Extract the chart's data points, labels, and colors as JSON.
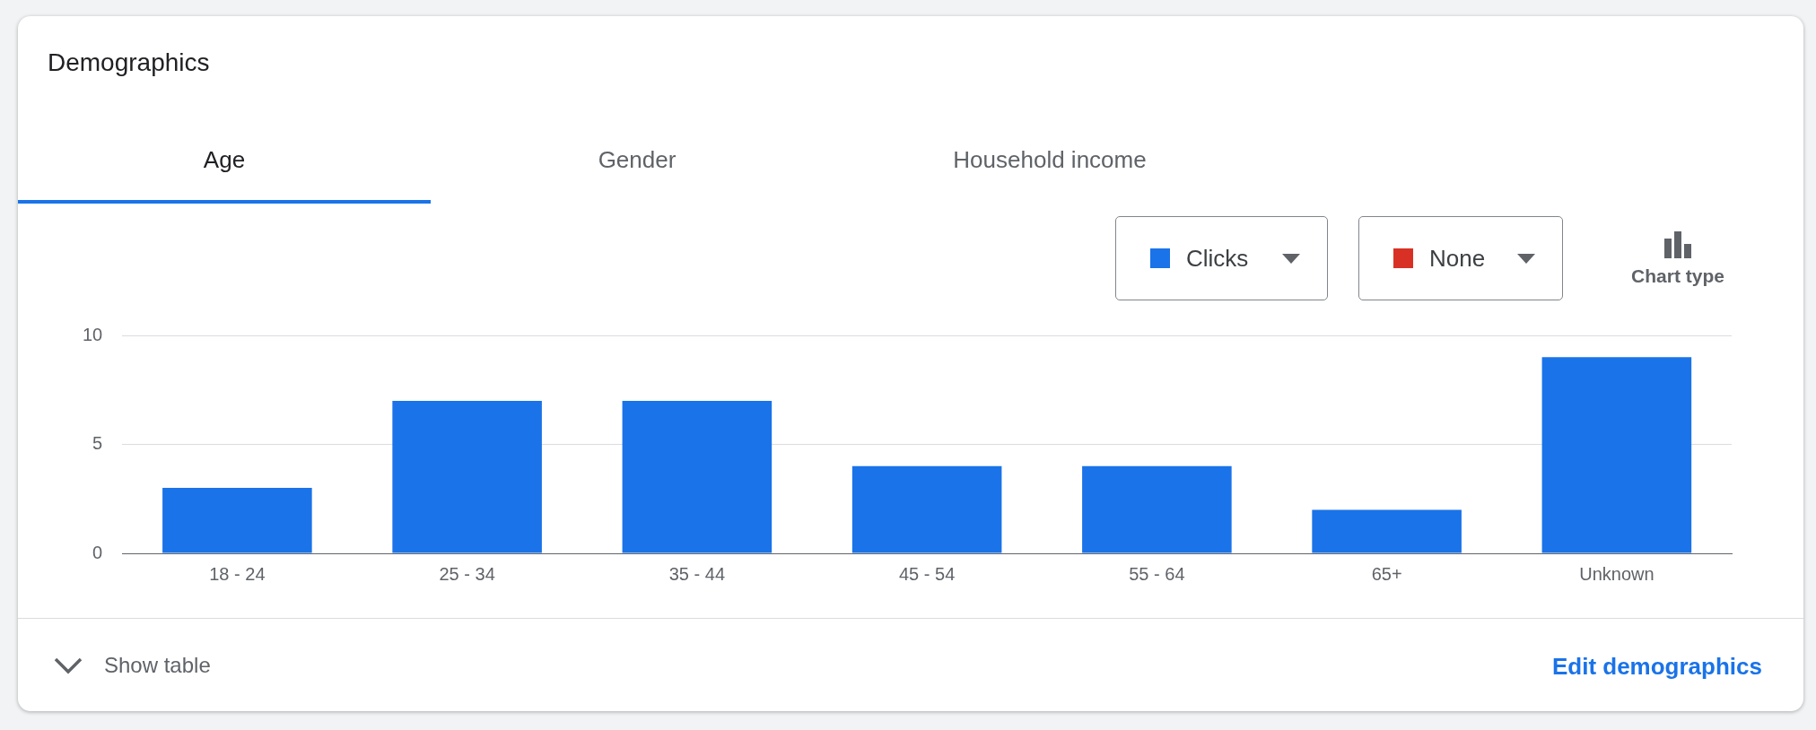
{
  "chart_data": {
    "type": "bar",
    "title": "Demographics",
    "categories": [
      "18 - 24",
      "25 - 34",
      "35 - 44",
      "45 - 54",
      "55 - 64",
      "65+",
      "Unknown"
    ],
    "series": [
      {
        "name": "Clicks",
        "color": "#1a73e8",
        "values": [
          3,
          7,
          7,
          4,
          4,
          2,
          9
        ]
      }
    ],
    "ylim": [
      0,
      10
    ],
    "yticks": [
      0,
      5,
      10
    ],
    "grid": "y",
    "legend": "top right",
    "annotations": [
      "Age",
      "Gender",
      "Household income",
      "None",
      "Chart type",
      "Show table",
      "Edit demographics"
    ]
  }
}
